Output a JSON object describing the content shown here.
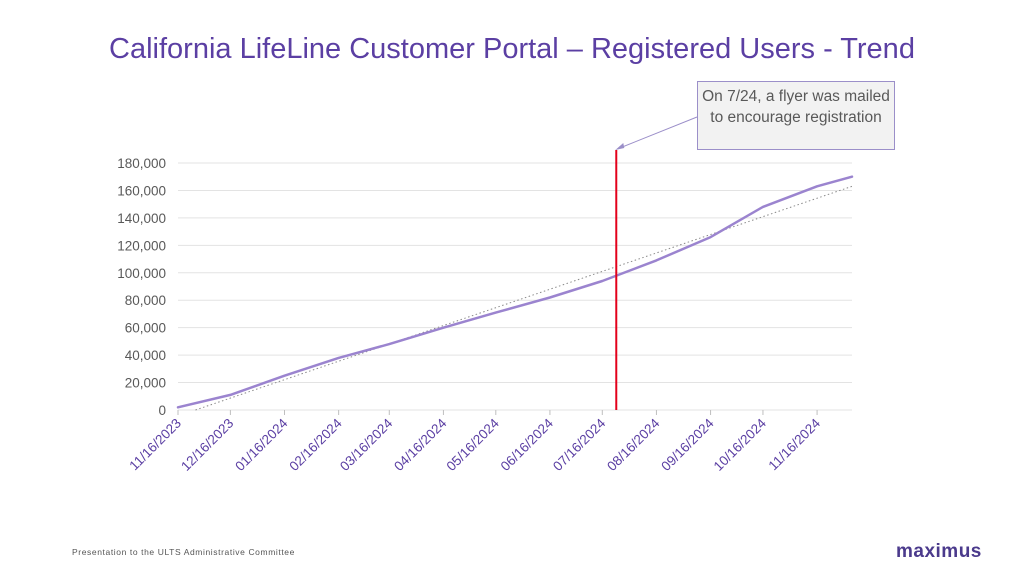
{
  "title": "California LifeLine Customer Portal – Registered Users - Trend",
  "annotation": {
    "text": "On 7/24, a flyer was mailed to encourage registration",
    "date": "2024-07-24"
  },
  "footer": "Presentation to the ULTS Administrative Committee",
  "logo": "maximus",
  "colors": {
    "title": "#5b3fa3",
    "series": "#9b84cf",
    "trendline": "#8a8a8a",
    "event_line": "#e3001b",
    "grid": "#e3e3e3",
    "callout_border": "#9b8fc9"
  },
  "chart_data": {
    "type": "line",
    "title": "California LifeLine Customer Portal – Registered Users - Trend",
    "xlabel": "",
    "ylabel": "",
    "ylim": [
      0,
      180000
    ],
    "y_ticks": [
      "0",
      "20,000",
      "40,000",
      "60,000",
      "80,000",
      "100,000",
      "120,000",
      "140,000",
      "160,000",
      "180,000"
    ],
    "y_tick_values": [
      0,
      20000,
      40000,
      60000,
      80000,
      100000,
      120000,
      140000,
      160000,
      180000
    ],
    "x_ticks": [
      "11/16/2023",
      "12/16/2023",
      "01/16/2024",
      "02/16/2024",
      "03/16/2024",
      "04/16/2024",
      "05/16/2024",
      "06/16/2024",
      "07/16/2024",
      "08/16/2024",
      "09/16/2024",
      "10/16/2024",
      "11/16/2024"
    ],
    "x_tick_dates": [
      "2023-11-16",
      "2023-12-16",
      "2024-01-16",
      "2024-02-16",
      "2024-03-16",
      "2024-04-16",
      "2024-05-16",
      "2024-06-16",
      "2024-07-16",
      "2024-08-16",
      "2024-09-16",
      "2024-10-16",
      "2024-11-16"
    ],
    "xlim": [
      "2023-11-16",
      "2024-12-06"
    ],
    "grid": true,
    "series": [
      {
        "x": [
          "2023-11-16",
          "2023-12-16",
          "2024-01-16",
          "2024-02-16",
          "2024-03-16",
          "2024-04-16",
          "2024-05-16",
          "2024-06-16",
          "2024-07-16",
          "2024-08-16",
          "2024-09-16",
          "2024-10-16",
          "2024-11-16",
          "2024-12-06"
        ],
        "y": [
          2000,
          11000,
          25000,
          38000,
          48000,
          60000,
          71000,
          82000,
          94000,
          109000,
          126000,
          148000,
          163000,
          170000
        ]
      }
    ],
    "trendline": {
      "style": "dotted linear",
      "x": [
        "2023-11-26",
        "2024-12-06"
      ],
      "y": [
        0,
        163000
      ]
    }
  }
}
